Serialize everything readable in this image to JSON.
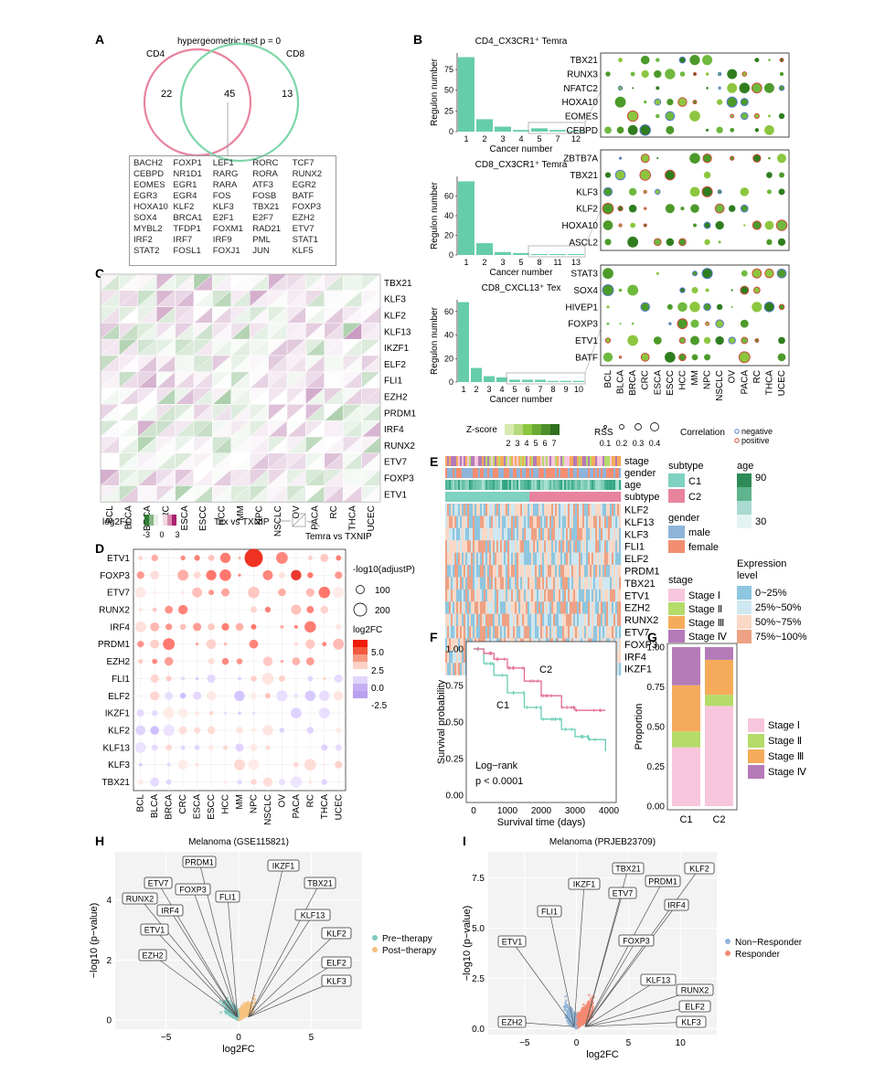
{
  "colors": {
    "teal": "#66cdaa",
    "pink": "#e8839e",
    "green_dot": "#6fb93f",
    "red_dot": "#cf4a3a",
    "orange": "#e07b39",
    "pre_therapy": "#7fc8c0",
    "post_therapy": "#f5c17d",
    "non_responder": "#8fb4d9",
    "responder": "#f48a72",
    "stage_I": "#f7c6dc",
    "stage_II": "#b5db6a",
    "stage_III": "#f6ab5b",
    "stage_IV": "#b57ab8",
    "expr_0_25": "#8ec6df",
    "expr_25_50": "#cfe7f0",
    "expr_50_75": "#f9d8c5",
    "expr_75_100": "#eea184"
  },
  "panelA": {
    "letter": "A",
    "title": "hypergeometric test p = 0",
    "label_left": "CD4",
    "label_right": "CD8",
    "n_left": "22",
    "n_mid": "45",
    "n_right": "13",
    "genes": [
      "BACH2",
      "FOXP1",
      "LEF1",
      "RORC",
      "TCF7",
      "CEBPD",
      "NR1D1",
      "RARG",
      "RORA",
      "RUNX2",
      "EOMES",
      "EGR1",
      "RARA",
      "ATF3",
      "EGR2",
      "EGR3",
      "EGR4",
      "FOS",
      "FOSB",
      "BATF",
      "HOXA10",
      "KLF2",
      "KLF3",
      "TBX21",
      "FOXP3",
      "SOX4",
      "BRCA1",
      "E2F1",
      "E2F7",
      "EZH2",
      "MYBL2",
      "TFDP1",
      "FOXM1",
      "RAD21",
      "ETV7",
      "IRF2",
      "IRF7",
      "IRF9",
      "PML",
      "STAT1",
      "STAT2",
      "FOSL1",
      "FOXJ1",
      "JUN",
      "KLF5"
    ]
  },
  "panelB": {
    "letter": "B",
    "ylabel": "Regulon number",
    "xlabel": "Cancer number",
    "hists": [
      {
        "title": "CD4_CX3CR1⁺ Temra",
        "categories": [
          "1",
          "2",
          "3",
          "4",
          "5",
          "7",
          "12"
        ],
        "values": [
          90,
          15,
          6,
          2,
          4,
          2,
          1
        ],
        "yticks": [
          "0",
          "25",
          "50",
          "75"
        ]
      },
      {
        "title": "CD8_CX3CR1⁺ Temra",
        "categories": [
          "1",
          "2",
          "3",
          "5",
          "8",
          "11",
          "13"
        ],
        "values": [
          75,
          12,
          3,
          2,
          1,
          1,
          1
        ],
        "yticks": [
          "0",
          "20",
          "40",
          "60"
        ]
      },
      {
        "title": "CD8_CXCL13⁺ Tex",
        "categories": [
          "1",
          "2",
          "3",
          "4",
          "5",
          "6",
          "7",
          "8",
          "9",
          "10"
        ],
        "values": [
          68,
          12,
          5,
          4,
          2,
          2,
          2,
          1,
          1,
          1
        ],
        "yticks": [
          "0",
          "20",
          "40",
          "60"
        ]
      }
    ],
    "dot_groups": [
      [
        "TBX21",
        "RUNX3",
        "NFATC2",
        "HOXA10",
        "EOMES",
        "CEBPD"
      ],
      [
        "ZBTB7A",
        "TBX21",
        "KLF3",
        "KLF2",
        "HOXA10",
        "ASCL2"
      ],
      [
        "STAT3",
        "SOX4",
        "HIVEP1",
        "FOXP3",
        "ETV1",
        "BATF"
      ]
    ],
    "cancers": [
      "BCL",
      "BLCA",
      "BRCA",
      "CRC",
      "ESCA",
      "ESCC",
      "HCC",
      "MM",
      "NPC",
      "NSCLC",
      "OV",
      "PACA",
      "RC",
      "THCA",
      "UCEC"
    ],
    "legend_z_title": "Z-score",
    "z_ticks": [
      "2",
      "3",
      "4",
      "5",
      "6",
      "7"
    ],
    "legend_rss_title": "RSS",
    "rss_ticks": [
      "0.1",
      "0.2",
      "0.3",
      "0.4"
    ],
    "legend_corr_title": "Correlation",
    "corr_neg": "negative",
    "corr_pos": "positive"
  },
  "panelC": {
    "letter": "C",
    "genes": [
      "TBX21",
      "KLF3",
      "KLF2",
      "KLF13",
      "IKZF1",
      "ELF2",
      "FLI1",
      "EZH2",
      "PRDM1",
      "IRF4",
      "RUNX2",
      "ETV7",
      "FOXP3",
      "ETV1"
    ],
    "cancers": [
      "BCL",
      "BLCA",
      "BRCA",
      "CRC",
      "ESCA",
      "ESCC",
      "HCC",
      "MM",
      "NPC",
      "NSCLC",
      "OV",
      "PACA",
      "RC",
      "THCA",
      "UCEC"
    ],
    "legend_title": "log2FC",
    "legend_ticks": [
      "-3",
      "0",
      "3"
    ],
    "tri_left": "Tex vs TXNIP",
    "tri_right": "Temra vs TXNIP"
  },
  "panelD": {
    "letter": "D",
    "genes": [
      "ETV1",
      "FOXP3",
      "ETV7",
      "RUNX2",
      "IRF4",
      "PRDM1",
      "EZH2",
      "FLI1",
      "ELF2",
      "IKZF1",
      "KLF2",
      "KLF13",
      "KLF3",
      "TBX21"
    ],
    "cancers": [
      "BCL",
      "BLCA",
      "BRCA",
      "CRC",
      "ESCA",
      "ESCC",
      "HCC",
      "MM",
      "NPC",
      "NSCLC",
      "OV",
      "PACA",
      "RC",
      "THCA",
      "UCEC"
    ],
    "size_title": "-log10(adjustP)",
    "size_ticks": [
      "100",
      "200"
    ],
    "color_title": "log2FC",
    "color_ticks": [
      "5.0",
      "2.5",
      "0.0",
      "-2.5"
    ]
  },
  "panelE": {
    "letter": "E",
    "track_labels": [
      "stage",
      "gender",
      "age",
      "subtype"
    ],
    "genes": [
      "KLF2",
      "KLF13",
      "KLF3",
      "FLI1",
      "ELF2",
      "PRDM1",
      "TBX21",
      "ETV1",
      "EZH2",
      "RUNX2",
      "ETV7",
      "FOXP3",
      "IRF4",
      "IKZF1"
    ],
    "legend_subtype_title": "subtype",
    "subtypes": [
      "C1",
      "C2"
    ],
    "legend_age_title": "age",
    "age_ticks": [
      "90",
      "30"
    ],
    "legend_gender_title": "gender",
    "genders": [
      "male",
      "female"
    ],
    "legend_stage_title": "stage",
    "stages": [
      "Stage Ⅰ",
      "Stage Ⅱ",
      "Stage Ⅲ",
      "Stage Ⅳ"
    ],
    "legend_expr_title": "Expression",
    "legend_expr_title2": "level",
    "expr_levels": [
      "0~25%",
      "25%~50%",
      "50%~75%",
      "75%~100%"
    ]
  },
  "panelF": {
    "letter": "F",
    "ylabel": "Survival probability",
    "xlabel": "Survival time (days)",
    "yticks": [
      "0.00",
      "0.25",
      "0.50",
      "0.75",
      "1.00"
    ],
    "xticks": [
      "0",
      "1000",
      "2000",
      "3000",
      "4000"
    ],
    "curve_c1": "C1",
    "curve_c2": "C2",
    "test": "Log−rank",
    "pval": "p < 0.0001"
  },
  "panelG": {
    "letter": "G",
    "ylabel": "Proportion",
    "yticks": [
      "0.00",
      "0.25",
      "0.50",
      "0.75",
      "1.00"
    ],
    "categories": [
      "C1",
      "C2"
    ],
    "series": [
      {
        "name": "Stage Ⅰ",
        "values": [
          0.37,
          0.63
        ]
      },
      {
        "name": "Stage Ⅱ",
        "values": [
          0.1,
          0.07
        ]
      },
      {
        "name": "Stage Ⅲ",
        "values": [
          0.29,
          0.22
        ]
      },
      {
        "name": "Stage Ⅳ",
        "values": [
          0.24,
          0.08
        ]
      }
    ]
  },
  "panelH": {
    "letter": "H",
    "title": "Melanoma (GSE115821)",
    "ylabel": "−log10 (p−value)",
    "xlabel": "log2FC",
    "xticks": [
      "−5",
      "0",
      "5"
    ],
    "yticks": [
      "0",
      "2",
      "4"
    ],
    "legend": [
      "Pre−therapy",
      "Post−therapy"
    ],
    "labels_left": [
      "PRDM1",
      "ETV7",
      "FOXP3",
      "RUNX2",
      "IRF4",
      "FLI1",
      "ETV1",
      "EZH2"
    ],
    "labels_right": [
      "IKZF1",
      "TBX21",
      "KLF13",
      "KLF2",
      "ELF2",
      "KLF3"
    ]
  },
  "panelI": {
    "letter": "I",
    "title": "Melanoma (PRJEB23709)",
    "ylabel": "−log10 (p−value)",
    "xlabel": "log2FC",
    "xticks": [
      "−5",
      "0",
      "5",
      "10"
    ],
    "yticks": [
      "0.0",
      "2.5",
      "5.0",
      "7.5"
    ],
    "legend": [
      "Non−Responder",
      "Responder"
    ],
    "labels_left": [
      "IKZF1",
      "FLI1",
      "ETV1",
      "EZH2"
    ],
    "labels_right": [
      "TBX21",
      "KLF2",
      "PRDM1",
      "ETV7",
      "IRF4",
      "FOXP3",
      "KLF13",
      "RUNX2",
      "ELF2",
      "KLF3"
    ]
  },
  "chart_data": [
    {
      "type": "bar",
      "title": "CD4_CX3CR1⁺ Temra",
      "categories": [
        "1",
        "2",
        "3",
        "4",
        "5",
        "7",
        "12"
      ],
      "values": [
        90,
        15,
        6,
        2,
        4,
        2,
        1
      ],
      "xlabel": "Cancer number",
      "ylabel": "Regulon number",
      "ylim": [
        0,
        95
      ]
    },
    {
      "type": "bar",
      "title": "CD8_CX3CR1⁺ Temra",
      "categories": [
        "1",
        "2",
        "3",
        "5",
        "8",
        "11",
        "13"
      ],
      "values": [
        75,
        12,
        3,
        2,
        1,
        1,
        1
      ],
      "xlabel": "Cancer number",
      "ylabel": "Regulon number",
      "ylim": [
        0,
        80
      ]
    },
    {
      "type": "bar",
      "title": "CD8_CXCL13⁺ Tex",
      "categories": [
        "1",
        "2",
        "3",
        "4",
        "5",
        "6",
        "7",
        "8",
        "9",
        "10"
      ],
      "values": [
        68,
        12,
        5,
        4,
        2,
        2,
        2,
        1,
        1,
        1
      ],
      "xlabel": "Cancer number",
      "ylabel": "Regulon number",
      "ylim": [
        0,
        70
      ]
    },
    {
      "type": "bar",
      "title": "",
      "categories": [
        "C1",
        "C2"
      ],
      "series": [
        {
          "name": "Stage Ⅰ",
          "values": [
            0.37,
            0.63
          ]
        },
        {
          "name": "Stage Ⅱ",
          "values": [
            0.1,
            0.07
          ]
        },
        {
          "name": "Stage Ⅲ",
          "values": [
            0.29,
            0.22
          ]
        },
        {
          "name": "Stage Ⅳ",
          "values": [
            0.24,
            0.08
          ]
        }
      ],
      "ylabel": "Proportion",
      "ylim": [
        0,
        1
      ]
    },
    {
      "type": "line",
      "title": "",
      "xlabel": "Survival time (days)",
      "ylabel": "Survival probability",
      "series": [
        {
          "name": "C1",
          "x": [
            0,
            300,
            600,
            1000,
            1500,
            2000,
            2600,
            3000,
            3400,
            3900
          ],
          "values": [
            1.0,
            0.9,
            0.82,
            0.7,
            0.6,
            0.52,
            0.45,
            0.4,
            0.38,
            0.3
          ]
        },
        {
          "name": "C2",
          "x": [
            0,
            300,
            600,
            1000,
            1500,
            2000,
            2600,
            3000,
            3400,
            3900
          ],
          "values": [
            1.0,
            0.97,
            0.93,
            0.87,
            0.78,
            0.68,
            0.6,
            0.58,
            0.58,
            0.58
          ]
        }
      ],
      "xlim": [
        0,
        4000
      ],
      "ylim": [
        0,
        1
      ]
    }
  ]
}
